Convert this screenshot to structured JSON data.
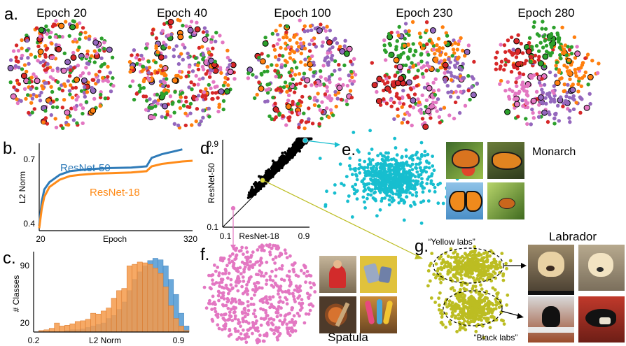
{
  "panels": {
    "a": {
      "label": "a.",
      "epochs": [
        "Epoch 20",
        "Epoch 40",
        "Epoch 100",
        "Epoch 230",
        "Epoch 280"
      ],
      "class_colors": [
        "#d62728",
        "#2ca02c",
        "#ff7f0e",
        "#9467bd",
        "#e377c2"
      ]
    },
    "b": {
      "label": "b.",
      "ylabel": "L2 Norm",
      "xlabel": "Epoch",
      "xticks": [
        "20",
        "320"
      ],
      "yticks": [
        "0.4",
        "0.7"
      ],
      "series_labels": [
        "ResNet-50",
        "ResNet-18"
      ],
      "colors": [
        "#2f7bb8",
        "#ff8c1a"
      ]
    },
    "c": {
      "label": "c.",
      "ylabel": "# Classes",
      "xlabel": "L2 Norm",
      "xticks": [
        "0.2",
        "0.9"
      ],
      "yticks": [
        "20",
        "90"
      ],
      "colors": [
        "#f59a4a",
        "#5a9ed6"
      ]
    },
    "d": {
      "label": "d.",
      "ylabel": "ResNet-50",
      "xlabel": "ResNet-18",
      "xticks": [
        "0.1",
        "0.9"
      ],
      "yticks": [
        "0.1",
        "0.9"
      ]
    },
    "e": {
      "label": "e.",
      "class_name": "Monarch",
      "color": "#17becf"
    },
    "f": {
      "label": "f.",
      "class_name": "Spatula",
      "color": "#e377c2"
    },
    "g": {
      "label": "g.",
      "class_name": "Labrador",
      "color": "#bcbd22",
      "cluster_labels": [
        "“Yellow labs”",
        "“Black labs”"
      ]
    }
  },
  "chart_data": [
    {
      "type": "line",
      "title": "",
      "xlabel": "Epoch",
      "ylabel": "L2 Norm",
      "xlim": [
        20,
        320
      ],
      "ylim": [
        0.38,
        0.74
      ],
      "series": [
        {
          "name": "ResNet-50",
          "x": [
            20,
            25,
            30,
            40,
            60,
            80,
            100,
            130,
            160,
            200,
            230,
            240,
            260,
            280,
            300
          ],
          "y": [
            0.4,
            0.5,
            0.55,
            0.58,
            0.61,
            0.625,
            0.63,
            0.635,
            0.638,
            0.64,
            0.645,
            0.68,
            0.695,
            0.705,
            0.715
          ]
        },
        {
          "name": "ResNet-18",
          "x": [
            20,
            25,
            30,
            40,
            60,
            80,
            100,
            130,
            160,
            200,
            230,
            240,
            260,
            280,
            300,
            320
          ],
          "y": [
            0.39,
            0.47,
            0.52,
            0.56,
            0.59,
            0.605,
            0.61,
            0.615,
            0.617,
            0.62,
            0.625,
            0.645,
            0.655,
            0.66,
            0.665,
            0.668
          ]
        }
      ]
    },
    {
      "type": "bar",
      "title": "",
      "xlabel": "L2 Norm",
      "ylabel": "# Classes",
      "xlim": [
        0.2,
        0.95
      ],
      "ylim": [
        0,
        105
      ],
      "bin_start": 0.2,
      "bin_width": 0.025,
      "series": [
        {
          "name": "",
          "values": [
            0,
            2,
            3,
            5,
            12,
            8,
            9,
            11,
            14,
            15,
            17,
            25,
            24,
            28,
            32,
            45,
            55,
            58,
            88,
            90,
            93,
            92,
            90,
            85,
            78,
            60,
            35,
            18,
            8,
            2
          ]
        },
        {
          "name": "",
          "values": [
            0,
            0,
            0,
            0,
            0,
            0,
            2,
            3,
            3,
            4,
            6,
            8,
            10,
            12,
            18,
            22,
            30,
            40,
            55,
            70,
            80,
            88,
            95,
            98,
            96,
            88,
            70,
            50,
            25,
            8
          ]
        }
      ]
    },
    {
      "type": "scatter",
      "title": "",
      "xlabel": "ResNet-18",
      "ylabel": "ResNet-50",
      "xlim": [
        0.1,
        0.95
      ],
      "ylim": [
        0.1,
        0.95
      ],
      "series": [
        {
          "name": "",
          "note_points": "cloud along diagonal"
        }
      ],
      "highlighted": {
        "Monarch": [
          0.92,
          0.92
        ],
        "Labrador": [
          0.6,
          0.68
        ],
        "Spatula": [
          0.32,
          0.35
        ]
      }
    }
  ]
}
